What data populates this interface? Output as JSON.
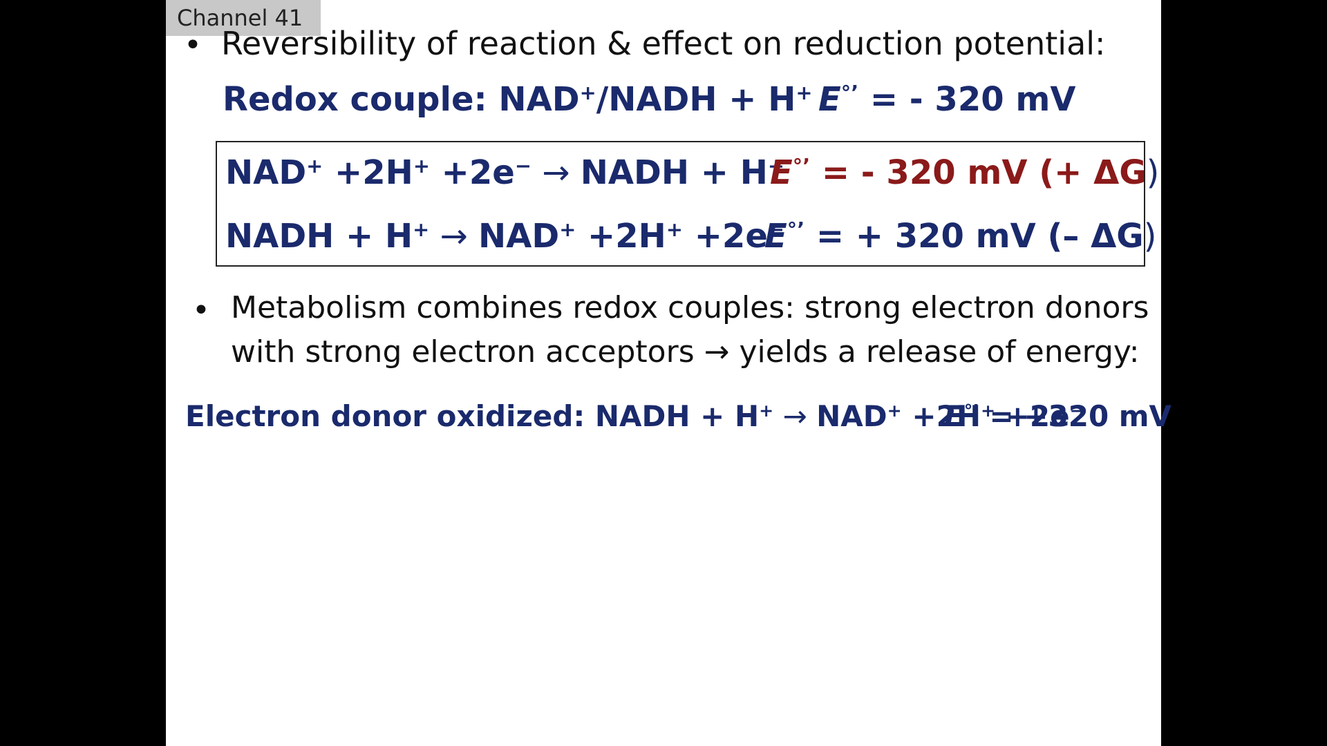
{
  "channel": {
    "label": "Channel 41"
  },
  "slide": {
    "bullet1": {
      "symbol": "•",
      "text": "Reversibility of reaction & effect on reduction potential:"
    },
    "redox_couple": {
      "label": "Redox couple: NAD",
      "sup1": "+",
      "mid": "/NADH + H",
      "sup2": "+",
      "e_symbol": "E",
      "e_sup": "°’",
      "value": " = - 320 mV"
    },
    "box": {
      "row1": {
        "eq": [
          {
            "t": "NAD"
          },
          {
            "s": "+"
          },
          {
            "t": " +2H"
          },
          {
            "s": "+"
          },
          {
            "t": " +2e"
          },
          {
            "s": "−"
          },
          {
            "t": " → ",
            "arrow": true
          },
          {
            "t": " NADH + H"
          },
          {
            "s": "+"
          }
        ],
        "e_symbol": "E",
        "e_sup": "°’",
        "value": " = - 320 mV (+ ΔG",
        "close": ")"
      },
      "row2": {
        "eq": [
          {
            "t": "NADH + H"
          },
          {
            "s": "+"
          },
          {
            "t": " → ",
            "arrow": true
          },
          {
            "t": "NAD"
          },
          {
            "s": "+"
          },
          {
            "t": " +2H"
          },
          {
            "s": "+"
          },
          {
            "t": " +2e"
          },
          {
            "s": "−"
          }
        ],
        "e_symbol": "E",
        "e_sup": "°’",
        "value": " = + 320 mV (– ΔG",
        "close": ")"
      }
    },
    "bullet2": {
      "symbol": "•",
      "line1": "Metabolism combines redox couples:  strong electron donors",
      "line2_a": "with strong electron acceptors ",
      "line2_arrow": "→",
      "line2_b": " yields a release of energy:"
    },
    "donor": {
      "label": "Electron donor oxidized: NADH + H",
      "sup1": "+",
      "arrow": " → ",
      "p2": "NAD",
      "sup2": "+",
      "p3": " +2H",
      "sup3": "+",
      "p4": " +2e",
      "sup4": "−",
      "e_symbol": "E",
      "e_sup": "°’",
      "value": " = +320 mV"
    }
  },
  "colors": {
    "navy": "#1a2a6c",
    "dark_red": "#8b1a1a",
    "background": "#000000",
    "slide": "#ffffff"
  }
}
